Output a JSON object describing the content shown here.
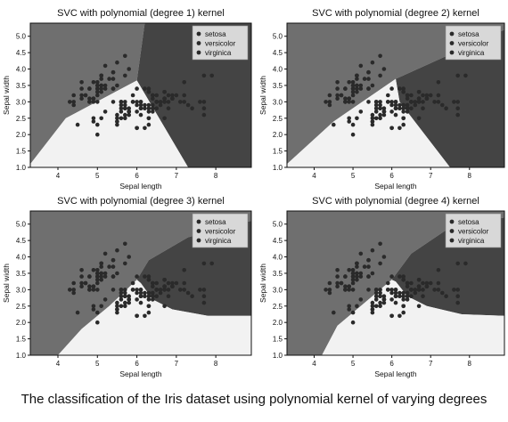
{
  "caption": "The classification of the Iris dataset using polynomial kernel of varying degrees",
  "colors": {
    "background": "#ffffff",
    "region_dark": "#444444",
    "region_mid": "#6f6f6f",
    "region_light": "#f2f2f2",
    "point": "#2a2a2a",
    "legend_box": "#d8d8d8"
  },
  "chart_data": [
    {
      "type": "scatter",
      "title": "SVC with polynomial (degree 1) kernel",
      "xlabel": "Sepal length",
      "ylabel": "Sepal width",
      "xlim": [
        3.3,
        8.9
      ],
      "ylim": [
        1.0,
        5.4
      ],
      "xticks": [
        4,
        5,
        6,
        7,
        8
      ],
      "yticks": [
        1.0,
        1.5,
        2.0,
        2.5,
        3.0,
        3.5,
        4.0,
        4.5,
        5.0
      ],
      "legend": [
        "setosa",
        "versicolor",
        "virginica"
      ],
      "legend_position": "top-right",
      "grid": false,
      "regions": [
        {
          "class": "setosa",
          "polygon": [
            [
              3.3,
              1.1
            ],
            [
              3.3,
              5.4
            ],
            [
              6.2,
              5.4
            ],
            [
              6.0,
              3.65
            ],
            [
              4.2,
              2.5
            ]
          ]
        },
        {
          "class": "virginica",
          "polygon": [
            [
              6.2,
              5.4
            ],
            [
              8.9,
              5.4
            ],
            [
              8.9,
              1.0
            ],
            [
              7.3,
              1.0
            ],
            [
              6.0,
              3.65
            ]
          ]
        },
        {
          "class": "versicolor",
          "polygon": [
            [
              3.3,
              1.0
            ],
            [
              3.3,
              1.1
            ],
            [
              4.2,
              2.5
            ],
            [
              6.0,
              3.65
            ],
            [
              7.3,
              1.0
            ]
          ]
        }
      ]
    },
    {
      "type": "scatter",
      "title": "SVC with polynomial (degree 2) kernel",
      "xlabel": "Sepal length",
      "ylabel": "Sepal width",
      "xlim": [
        3.3,
        8.9
      ],
      "ylim": [
        1.0,
        5.4
      ],
      "xticks": [
        4,
        5,
        6,
        7,
        8
      ],
      "yticks": [
        1.0,
        1.5,
        2.0,
        2.5,
        3.0,
        3.5,
        4.0,
        4.5,
        5.0
      ],
      "legend": [
        "setosa",
        "versicolor",
        "virginica"
      ],
      "legend_position": "top-right",
      "grid": false,
      "regions": [
        {
          "class": "setosa",
          "polygon": [
            [
              3.3,
              1.1
            ],
            [
              3.3,
              5.4
            ],
            [
              8.9,
              5.4
            ],
            [
              8.9,
              5.2
            ],
            [
              6.1,
              3.7
            ],
            [
              4.5,
              2.4
            ]
          ]
        },
        {
          "class": "virginica",
          "polygon": [
            [
              8.9,
              5.2
            ],
            [
              8.9,
              1.0
            ],
            [
              7.5,
              1.0
            ],
            [
              6.2,
              3.0
            ],
            [
              6.1,
              3.7
            ]
          ]
        },
        {
          "class": "versicolor",
          "polygon": [
            [
              3.3,
              1.0
            ],
            [
              3.3,
              1.1
            ],
            [
              4.5,
              2.4
            ],
            [
              6.1,
              3.7
            ],
            [
              6.2,
              3.0
            ],
            [
              7.5,
              1.0
            ]
          ]
        }
      ]
    },
    {
      "type": "scatter",
      "title": "SVC with polynomial (degree 3) kernel",
      "xlabel": "Sepal length",
      "ylabel": "Sepal width",
      "xlim": [
        3.3,
        8.9
      ],
      "ylim": [
        1.0,
        5.4
      ],
      "xticks": [
        4,
        5,
        6,
        7,
        8
      ],
      "yticks": [
        1.0,
        1.5,
        2.0,
        2.5,
        3.0,
        3.5,
        4.0,
        4.5,
        5.0
      ],
      "legend": [
        "setosa",
        "versicolor",
        "virginica"
      ],
      "legend_position": "top-right",
      "grid": false,
      "regions": [
        {
          "class": "setosa",
          "polygon": [
            [
              3.3,
              5.4
            ],
            [
              8.9,
              5.4
            ],
            [
              8.9,
              5.1
            ],
            [
              7.3,
              4.6
            ],
            [
              6.3,
              3.9
            ],
            [
              6.0,
              3.3
            ],
            [
              5.3,
              2.5
            ],
            [
              4.6,
              1.8
            ],
            [
              4.0,
              1.0
            ],
            [
              3.3,
              1.0
            ]
          ]
        },
        {
          "class": "virginica",
          "polygon": [
            [
              8.9,
              5.1
            ],
            [
              8.9,
              2.2
            ],
            [
              7.8,
              2.2
            ],
            [
              6.9,
              2.4
            ],
            [
              6.4,
              2.7
            ],
            [
              6.1,
              3.2
            ],
            [
              6.0,
              3.3
            ],
            [
              6.3,
              3.9
            ],
            [
              7.3,
              4.6
            ]
          ]
        },
        {
          "class": "versicolor",
          "polygon": [
            [
              4.0,
              1.0
            ],
            [
              4.6,
              1.8
            ],
            [
              5.3,
              2.5
            ],
            [
              6.0,
              3.3
            ],
            [
              6.1,
              3.2
            ],
            [
              6.4,
              2.7
            ],
            [
              6.9,
              2.4
            ],
            [
              7.8,
              2.2
            ],
            [
              8.9,
              2.2
            ],
            [
              8.9,
              1.0
            ]
          ]
        }
      ]
    },
    {
      "type": "scatter",
      "title": "SVC with polynomial (degree 4) kernel",
      "xlabel": "Sepal length",
      "ylabel": "Sepal width",
      "xlim": [
        3.3,
        8.9
      ],
      "ylim": [
        1.0,
        5.4
      ],
      "xticks": [
        4,
        5,
        6,
        7,
        8
      ],
      "yticks": [
        1.0,
        1.5,
        2.0,
        2.5,
        3.0,
        3.5,
        4.0,
        4.5,
        5.0
      ],
      "legend": [
        "setosa",
        "versicolor",
        "virginica"
      ],
      "legend_position": "top-right",
      "grid": false,
      "regions": [
        {
          "class": "setosa",
          "polygon": [
            [
              3.3,
              5.4
            ],
            [
              8.9,
              5.4
            ],
            [
              8.9,
              5.2
            ],
            [
              7.5,
              4.9
            ],
            [
              6.5,
              4.1
            ],
            [
              6.0,
              3.3
            ],
            [
              5.3,
              2.6
            ],
            [
              4.6,
              1.9
            ],
            [
              4.2,
              1.0
            ],
            [
              3.3,
              1.0
            ]
          ]
        },
        {
          "class": "virginica",
          "polygon": [
            [
              8.9,
              5.2
            ],
            [
              8.9,
              2.2
            ],
            [
              7.8,
              2.25
            ],
            [
              6.9,
              2.5
            ],
            [
              6.4,
              2.8
            ],
            [
              6.1,
              3.25
            ],
            [
              6.0,
              3.3
            ],
            [
              6.5,
              4.1
            ],
            [
              7.5,
              4.9
            ]
          ]
        },
        {
          "class": "versicolor",
          "polygon": [
            [
              4.2,
              1.0
            ],
            [
              4.6,
              1.9
            ],
            [
              5.3,
              2.6
            ],
            [
              6.0,
              3.3
            ],
            [
              6.1,
              3.25
            ],
            [
              6.4,
              2.8
            ],
            [
              6.9,
              2.5
            ],
            [
              7.8,
              2.25
            ],
            [
              8.9,
              2.2
            ],
            [
              8.9,
              1.0
            ]
          ]
        }
      ]
    }
  ],
  "points": {
    "setosa": [
      [
        5.1,
        3.5
      ],
      [
        4.9,
        3.0
      ],
      [
        4.7,
        3.2
      ],
      [
        4.6,
        3.1
      ],
      [
        5.0,
        3.6
      ],
      [
        5.4,
        3.9
      ],
      [
        4.6,
        3.4
      ],
      [
        5.0,
        3.4
      ],
      [
        4.4,
        2.9
      ],
      [
        4.9,
        3.1
      ],
      [
        5.4,
        3.7
      ],
      [
        4.8,
        3.4
      ],
      [
        4.8,
        3.0
      ],
      [
        4.3,
        3.0
      ],
      [
        5.8,
        4.0
      ],
      [
        5.7,
        4.4
      ],
      [
        5.4,
        3.9
      ],
      [
        5.1,
        3.5
      ],
      [
        5.7,
        3.8
      ],
      [
        5.1,
        3.8
      ],
      [
        5.4,
        3.4
      ],
      [
        5.1,
        3.7
      ],
      [
        4.6,
        3.6
      ],
      [
        5.1,
        3.3
      ],
      [
        4.8,
        3.4
      ],
      [
        5.0,
        3.0
      ],
      [
        5.0,
        3.4
      ],
      [
        5.2,
        3.5
      ],
      [
        5.2,
        3.4
      ],
      [
        4.7,
        3.2
      ],
      [
        4.8,
        3.1
      ],
      [
        5.4,
        3.4
      ],
      [
        5.2,
        4.1
      ],
      [
        5.5,
        4.2
      ],
      [
        4.9,
        3.1
      ],
      [
        5.0,
        3.2
      ],
      [
        5.5,
        3.5
      ],
      [
        4.9,
        3.6
      ],
      [
        4.4,
        3.0
      ],
      [
        5.1,
        3.4
      ],
      [
        5.0,
        3.5
      ],
      [
        4.5,
        2.3
      ],
      [
        4.4,
        3.2
      ],
      [
        5.0,
        3.5
      ],
      [
        5.1,
        3.8
      ],
      [
        4.8,
        3.0
      ],
      [
        5.1,
        3.8
      ],
      [
        4.6,
        3.2
      ],
      [
        5.3,
        3.7
      ],
      [
        5.0,
        3.3
      ]
    ],
    "versicolor": [
      [
        7.0,
        3.2
      ],
      [
        6.4,
        3.2
      ],
      [
        6.9,
        3.1
      ],
      [
        5.5,
        2.3
      ],
      [
        6.5,
        2.8
      ],
      [
        5.7,
        2.8
      ],
      [
        6.3,
        3.3
      ],
      [
        4.9,
        2.4
      ],
      [
        6.6,
        2.9
      ],
      [
        5.2,
        2.7
      ],
      [
        5.0,
        2.0
      ],
      [
        5.9,
        3.0
      ],
      [
        6.0,
        2.2
      ],
      [
        6.1,
        2.9
      ],
      [
        5.6,
        2.9
      ],
      [
        6.7,
        3.1
      ],
      [
        5.6,
        3.0
      ],
      [
        5.8,
        2.7
      ],
      [
        6.2,
        2.2
      ],
      [
        5.6,
        2.5
      ],
      [
        5.9,
        3.2
      ],
      [
        6.1,
        2.8
      ],
      [
        6.3,
        2.5
      ],
      [
        6.1,
        2.8
      ],
      [
        6.4,
        2.9
      ],
      [
        6.6,
        3.0
      ],
      [
        6.8,
        2.8
      ],
      [
        6.7,
        3.0
      ],
      [
        6.0,
        2.9
      ],
      [
        5.7,
        2.6
      ],
      [
        5.5,
        2.4
      ],
      [
        5.5,
        2.4
      ],
      [
        5.8,
        2.7
      ],
      [
        6.0,
        2.7
      ],
      [
        5.4,
        3.0
      ],
      [
        6.0,
        3.4
      ],
      [
        6.7,
        3.1
      ],
      [
        6.3,
        2.3
      ],
      [
        5.6,
        3.0
      ],
      [
        5.5,
        2.5
      ],
      [
        5.5,
        2.6
      ],
      [
        6.1,
        3.0
      ],
      [
        5.8,
        2.6
      ],
      [
        5.0,
        2.3
      ],
      [
        5.6,
        2.7
      ],
      [
        5.7,
        3.0
      ],
      [
        5.7,
        2.9
      ],
      [
        6.2,
        2.9
      ],
      [
        5.1,
        2.5
      ],
      [
        5.7,
        2.8
      ]
    ],
    "virginica": [
      [
        6.3,
        3.3
      ],
      [
        5.8,
        2.7
      ],
      [
        7.1,
        3.0
      ],
      [
        6.3,
        2.9
      ],
      [
        6.5,
        3.0
      ],
      [
        7.6,
        3.0
      ],
      [
        4.9,
        2.5
      ],
      [
        7.3,
        2.9
      ],
      [
        6.7,
        2.5
      ],
      [
        7.2,
        3.6
      ],
      [
        6.5,
        3.2
      ],
      [
        6.4,
        2.7
      ],
      [
        6.8,
        3.0
      ],
      [
        5.7,
        2.5
      ],
      [
        5.8,
        2.8
      ],
      [
        6.4,
        3.2
      ],
      [
        6.5,
        3.0
      ],
      [
        7.7,
        3.8
      ],
      [
        7.7,
        2.6
      ],
      [
        6.0,
        2.2
      ],
      [
        6.9,
        3.2
      ],
      [
        5.6,
        2.8
      ],
      [
        7.7,
        2.8
      ],
      [
        6.3,
        2.7
      ],
      [
        6.7,
        3.3
      ],
      [
        7.2,
        3.2
      ],
      [
        6.2,
        2.8
      ],
      [
        6.1,
        3.0
      ],
      [
        6.4,
        2.8
      ],
      [
        7.2,
        3.0
      ],
      [
        7.4,
        2.8
      ],
      [
        7.9,
        3.8
      ],
      [
        6.4,
        2.8
      ],
      [
        6.3,
        2.8
      ],
      [
        6.1,
        2.6
      ],
      [
        7.7,
        3.0
      ],
      [
        6.3,
        3.4
      ],
      [
        6.4,
        3.1
      ],
      [
        6.0,
        3.0
      ],
      [
        6.9,
        3.1
      ],
      [
        6.7,
        3.1
      ],
      [
        6.9,
        3.1
      ],
      [
        5.8,
        2.7
      ],
      [
        6.8,
        3.2
      ],
      [
        6.7,
        3.3
      ],
      [
        6.7,
        3.0
      ],
      [
        6.3,
        2.5
      ],
      [
        6.5,
        3.0
      ],
      [
        6.2,
        3.4
      ],
      [
        5.9,
        3.0
      ]
    ]
  }
}
